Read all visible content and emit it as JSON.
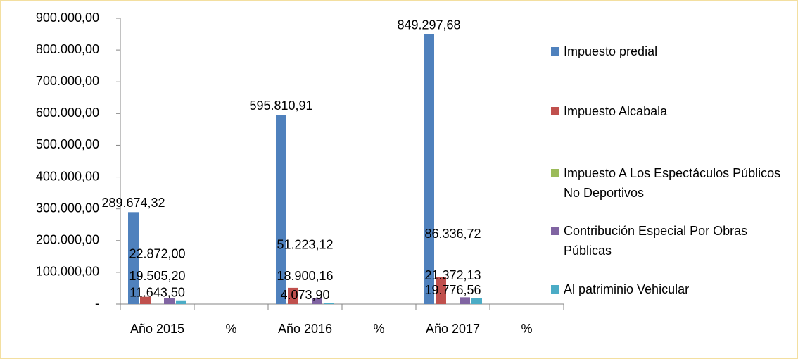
{
  "chart_data": {
    "type": "bar",
    "categories": [
      "Año 2015",
      "%",
      "Año 2016",
      "%",
      "Año 2017",
      "%"
    ],
    "series": [
      {
        "name": "Impuesto predial",
        "color": "#4f81bd",
        "values": [
          289674.32,
          null,
          595810.91,
          null,
          849297.68,
          null
        ],
        "value_labels": [
          "289.674,32",
          null,
          "595.810,91",
          null,
          "849.297,68",
          null
        ]
      },
      {
        "name": "Impuesto Alcabala",
        "color": "#c0504d",
        "values": [
          22872.0,
          null,
          51223.12,
          null,
          86336.72,
          null
        ],
        "value_labels": [
          "22.872,00",
          null,
          "51.223,12",
          null,
          "86.336,72",
          null
        ]
      },
      {
        "name": "Impuesto A Los Espectáculos Públicos No Deportivos",
        "color": "#9bbb59",
        "values": [
          null,
          null,
          null,
          null,
          null,
          null
        ]
      },
      {
        "name": "Contribución Especial Por Obras Públicas",
        "color": "#8064a2",
        "values": [
          19505.2,
          null,
          18900.16,
          null,
          21372.13,
          null
        ],
        "value_labels": [
          "19.505,20",
          null,
          "18.900,16",
          null,
          "21.372,13",
          null
        ]
      },
      {
        "name": "Al patriminio Vehicular",
        "color": "#4bacc6",
        "values": [
          11643.5,
          null,
          4073.9,
          null,
          19776.56,
          null
        ],
        "value_labels": [
          "11.643,50",
          null,
          "4.073,90",
          null,
          "19.776,56",
          null
        ]
      }
    ],
    "ylim": [
      0,
      900000
    ],
    "yticks": [
      {
        "value": 0,
        "label": "-"
      },
      {
        "value": 100000,
        "label": "100.000,00"
      },
      {
        "value": 200000,
        "label": "200.000,00"
      },
      {
        "value": 300000,
        "label": "300.000,00"
      },
      {
        "value": 400000,
        "label": "400.000,00"
      },
      {
        "value": 500000,
        "label": "500.000,00"
      },
      {
        "value": 600000,
        "label": "600.000,00"
      },
      {
        "value": 700000,
        "label": "700.000,00"
      },
      {
        "value": 800000,
        "label": "800.000,00"
      },
      {
        "value": 900000,
        "label": "900.000,00"
      }
    ],
    "legend": "right"
  }
}
